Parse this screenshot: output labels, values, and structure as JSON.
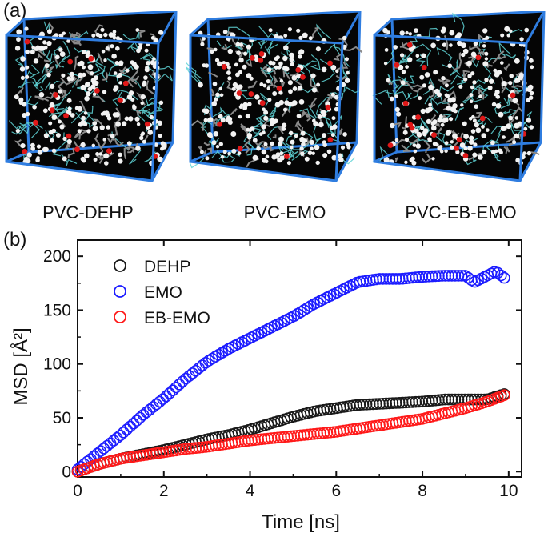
{
  "panel_a": {
    "label": "(a)",
    "captions": [
      "PVC-DEHP",
      "PVC-EMO",
      "PVC-EB-EMO"
    ]
  },
  "panel_b": {
    "label": "(b)"
  },
  "colors": {
    "box_edge": "#2f7de0",
    "box_fill": "#050505",
    "atom_white": "#f2f2f2",
    "atom_red": "#e01818",
    "bond_gray": "#8a8a8a",
    "pvc_cyan": "#5fd3d6",
    "DEHP": "#1a1a1a",
    "EMO": "#1c1cff",
    "EB-EMO": "#ff1a1a"
  },
  "chart_data": {
    "type": "scatter",
    "title": "",
    "xlabel": "Time [ns]",
    "ylabel": "MSD [Å²]",
    "xlim": [
      0,
      10.3
    ],
    "ylim": [
      -5,
      215
    ],
    "xticks": [
      0,
      2,
      4,
      6,
      8,
      10
    ],
    "yticks": [
      0,
      50,
      100,
      150,
      200
    ],
    "legend_position": "top-left",
    "marker": "open-circle",
    "series": [
      {
        "name": "DEHP",
        "color": "#1a1a1a",
        "x": [
          0,
          0.5,
          1,
          1.5,
          2,
          2.5,
          3,
          3.5,
          4,
          4.5,
          5,
          5.5,
          6,
          6.5,
          7,
          7.5,
          8,
          8.5,
          9,
          9.5,
          9.9
        ],
        "y": [
          0,
          7,
          12,
          16,
          20,
          25,
          30,
          34,
          39,
          45,
          51,
          56,
          59,
          62,
          63,
          64,
          65,
          67,
          67,
          67,
          72
        ]
      },
      {
        "name": "EMO",
        "color": "#1c1cff",
        "x": [
          0,
          0.5,
          1,
          1.5,
          2,
          2.5,
          3,
          3.5,
          4,
          4.5,
          5,
          5.5,
          6,
          6.5,
          7,
          7.5,
          8,
          8.5,
          9,
          9.2,
          9.5,
          9.7,
          9.9
        ],
        "y": [
          2,
          18,
          34,
          52,
          68,
          86,
          102,
          114,
          124,
          134,
          144,
          156,
          166,
          176,
          179,
          179,
          181,
          182,
          182,
          176,
          182,
          186,
          180
        ]
      },
      {
        "name": "EB-EMO",
        "color": "#ff1a1a",
        "x": [
          0,
          0.5,
          1,
          1.5,
          2,
          2.5,
          3,
          3.5,
          4,
          4.5,
          5,
          5.5,
          6,
          6.5,
          7,
          7.5,
          8,
          8.5,
          9,
          9.5,
          9.9
        ],
        "y": [
          0,
          7,
          12,
          15,
          18,
          21,
          23,
          26,
          29,
          31,
          33,
          35,
          37,
          40,
          43,
          46,
          49,
          54,
          59,
          65,
          71
        ]
      }
    ]
  }
}
